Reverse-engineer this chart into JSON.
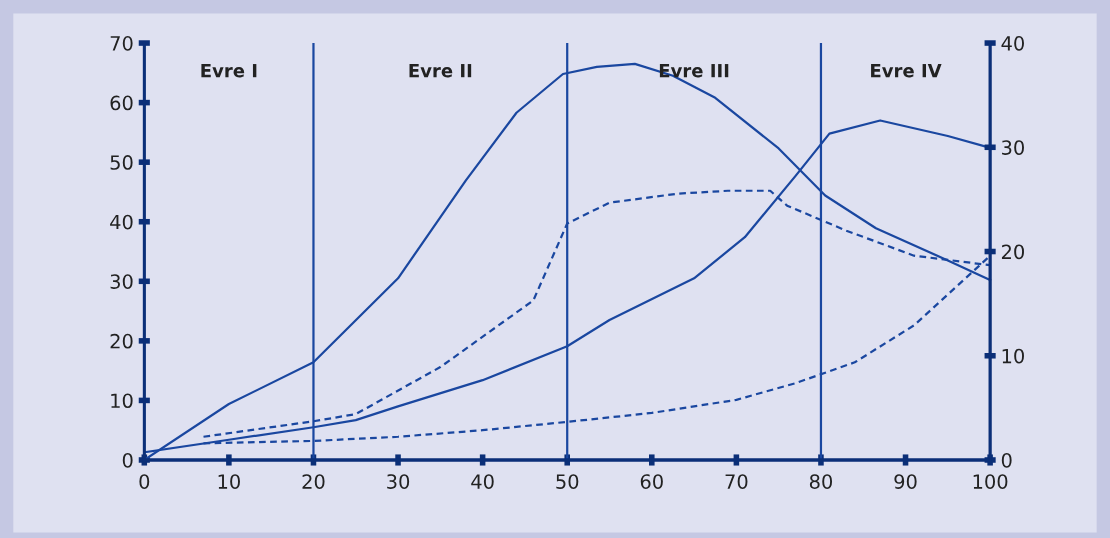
{
  "chart_data": {
    "type": "line",
    "xlim": [
      0,
      100
    ],
    "xticks": [
      0,
      10,
      20,
      30,
      40,
      50,
      60,
      70,
      80,
      90,
      100
    ],
    "ylim": [
      0,
      70
    ],
    "yticks": [
      0,
      10,
      20,
      30,
      40,
      50,
      60,
      70
    ],
    "y2lim": [
      0,
      40
    ],
    "y2ticks": [
      0,
      10,
      20,
      30,
      40
    ],
    "grid": false,
    "legend": false,
    "marker": "none",
    "series": [
      {
        "color": "#1a47a0",
        "line_style": "solid",
        "x": [
          0,
          10,
          20,
          30,
          38,
          44,
          49.5,
          53.5,
          58,
          62.5,
          67.5,
          75,
          80.5,
          86.5,
          95,
          100
        ],
        "values": [
          0,
          9.4,
          16.4,
          30.5,
          46.9,
          58.3,
          64.8,
          66,
          66.5,
          64.5,
          60.8,
          52.3,
          44.4,
          38.9,
          33.5,
          30.2
        ]
      },
      {
        "color": "#1a47a0",
        "line_style": "solid",
        "x": [
          0,
          10,
          20,
          25,
          30,
          40,
          50,
          55,
          65,
          71,
          77,
          81,
          87,
          95,
          100
        ],
        "values": [
          1.3,
          3.4,
          5.5,
          6.7,
          9,
          13.4,
          19.1,
          23.5,
          30.5,
          37.4,
          47.7,
          54.8,
          57,
          54.4,
          52.4
        ]
      },
      {
        "color": "#1a47a0",
        "line_style": "dashed",
        "x": [
          7,
          20,
          25,
          35,
          46,
          50,
          55,
          63,
          69,
          74,
          76,
          83,
          91,
          100
        ],
        "values": [
          3.9,
          6.5,
          7.7,
          15.6,
          26.8,
          39.7,
          43.2,
          44.7,
          45.2,
          45.2,
          42.7,
          38.5,
          34.3,
          32.7
        ]
      },
      {
        "color": "#1a47a0",
        "line_style": "dashed",
        "x": [
          7,
          20,
          30,
          40,
          50,
          60,
          70,
          77,
          84,
          91,
          100
        ],
        "values": [
          2.8,
          3.2,
          3.9,
          5,
          6.4,
          7.9,
          10.1,
          12.9,
          16.4,
          22.6,
          34.3
        ]
      }
    ],
    "ref_lines": [
      {
        "axis": "x",
        "value": 20,
        "color": "#1a47a0"
      },
      {
        "axis": "x",
        "value": 50,
        "color": "#1a47a0"
      },
      {
        "axis": "x",
        "value": 80,
        "color": "#1a47a0"
      }
    ],
    "annotations": [
      "Evre I",
      "Evre II",
      "Evre III",
      "Evre IV"
    ]
  }
}
